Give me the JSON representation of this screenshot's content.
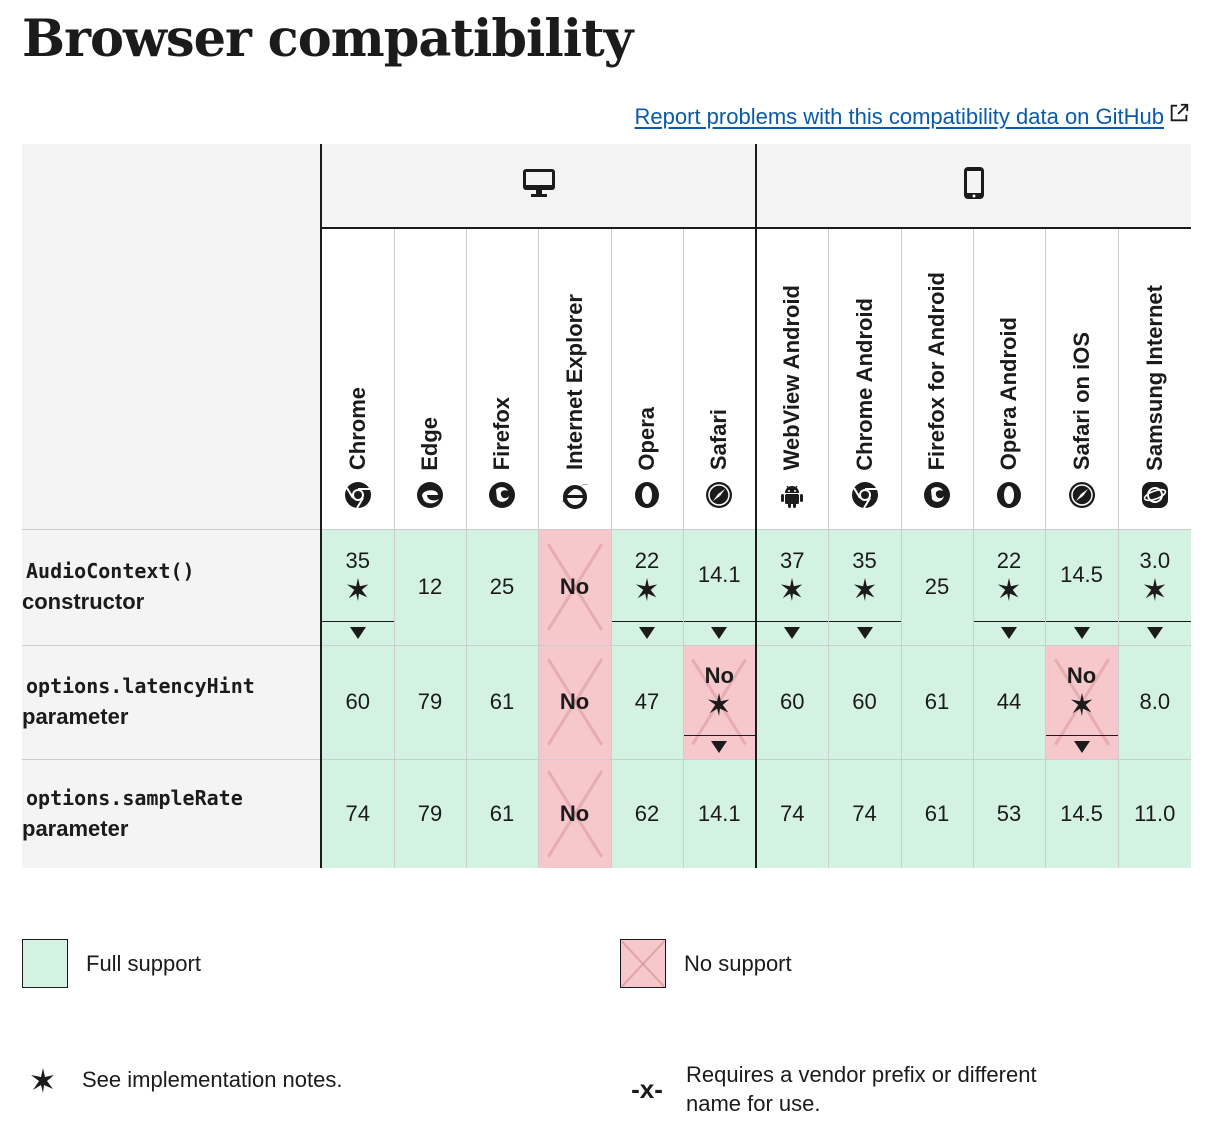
{
  "page": {
    "title": "Browser compatibility",
    "report_link": "Report problems with this compatibility data on GitHub"
  },
  "platforms": [
    {
      "name": "desktop",
      "icon": "desktop-icon",
      "span": 6
    },
    {
      "name": "mobile",
      "icon": "mobile-icon",
      "span": 6
    }
  ],
  "browsers": [
    {
      "label": "Chrome",
      "icon": "chrome-icon"
    },
    {
      "label": "Edge",
      "icon": "edge-icon"
    },
    {
      "label": "Firefox",
      "icon": "firefox-icon"
    },
    {
      "label": "Internet Explorer",
      "icon": "internet-explorer-icon"
    },
    {
      "label": "Opera",
      "icon": "opera-icon"
    },
    {
      "label": "Safari",
      "icon": "safari-icon"
    },
    {
      "label": "WebView Android",
      "icon": "android-icon"
    },
    {
      "label": "Chrome Android",
      "icon": "chrome-icon"
    },
    {
      "label": "Firefox for Android",
      "icon": "firefox-icon"
    },
    {
      "label": "Opera Android",
      "icon": "opera-icon"
    },
    {
      "label": "Safari on iOS",
      "icon": "safari-icon"
    },
    {
      "label": "Samsung Internet",
      "icon": "samsung-internet-icon"
    }
  ],
  "features": [
    {
      "code": "AudioContext()",
      "desc": "constructor",
      "support": [
        {
          "v": "35",
          "status": "full",
          "note": true,
          "expand": true
        },
        {
          "v": "12",
          "status": "full"
        },
        {
          "v": "25",
          "status": "full"
        },
        {
          "v": "No",
          "status": "none"
        },
        {
          "v": "22",
          "status": "full",
          "note": true,
          "expand": true
        },
        {
          "v": "14.1",
          "status": "full",
          "expand": true
        },
        {
          "v": "37",
          "status": "full",
          "note": true,
          "expand": true
        },
        {
          "v": "35",
          "status": "full",
          "note": true,
          "expand": true
        },
        {
          "v": "25",
          "status": "full"
        },
        {
          "v": "22",
          "status": "full",
          "note": true,
          "expand": true
        },
        {
          "v": "14.5",
          "status": "full",
          "expand": true
        },
        {
          "v": "3.0",
          "status": "full",
          "note": true,
          "expand": true
        }
      ]
    },
    {
      "code": "options.latencyHint",
      "desc": "parameter",
      "support": [
        {
          "v": "60",
          "status": "full"
        },
        {
          "v": "79",
          "status": "full"
        },
        {
          "v": "61",
          "status": "full"
        },
        {
          "v": "No",
          "status": "none"
        },
        {
          "v": "47",
          "status": "full"
        },
        {
          "v": "No",
          "status": "none",
          "note": true,
          "expand": true
        },
        {
          "v": "60",
          "status": "full"
        },
        {
          "v": "60",
          "status": "full"
        },
        {
          "v": "61",
          "status": "full"
        },
        {
          "v": "44",
          "status": "full"
        },
        {
          "v": "No",
          "status": "none",
          "note": true,
          "expand": true
        },
        {
          "v": "8.0",
          "status": "full"
        }
      ]
    },
    {
      "code": "options.sampleRate",
      "desc": "parameter",
      "support": [
        {
          "v": "74",
          "status": "full"
        },
        {
          "v": "79",
          "status": "full"
        },
        {
          "v": "61",
          "status": "full"
        },
        {
          "v": "No",
          "status": "none"
        },
        {
          "v": "62",
          "status": "full"
        },
        {
          "v": "14.1",
          "status": "full"
        },
        {
          "v": "74",
          "status": "full"
        },
        {
          "v": "74",
          "status": "full"
        },
        {
          "v": "61",
          "status": "full"
        },
        {
          "v": "53",
          "status": "full"
        },
        {
          "v": "14.5",
          "status": "full"
        },
        {
          "v": "11.0",
          "status": "full"
        }
      ]
    }
  ],
  "legend": {
    "full_support": "Full support",
    "no_support": "No support",
    "notes": "See implementation notes.",
    "prefix_glyph": "-x-",
    "prefix_line1": "Requires a vendor prefix or different",
    "prefix_line2": "name for use."
  },
  "colors": {
    "full": "#d4f2e1",
    "none": "#f6c8cb",
    "link": "#0b5aa7"
  }
}
